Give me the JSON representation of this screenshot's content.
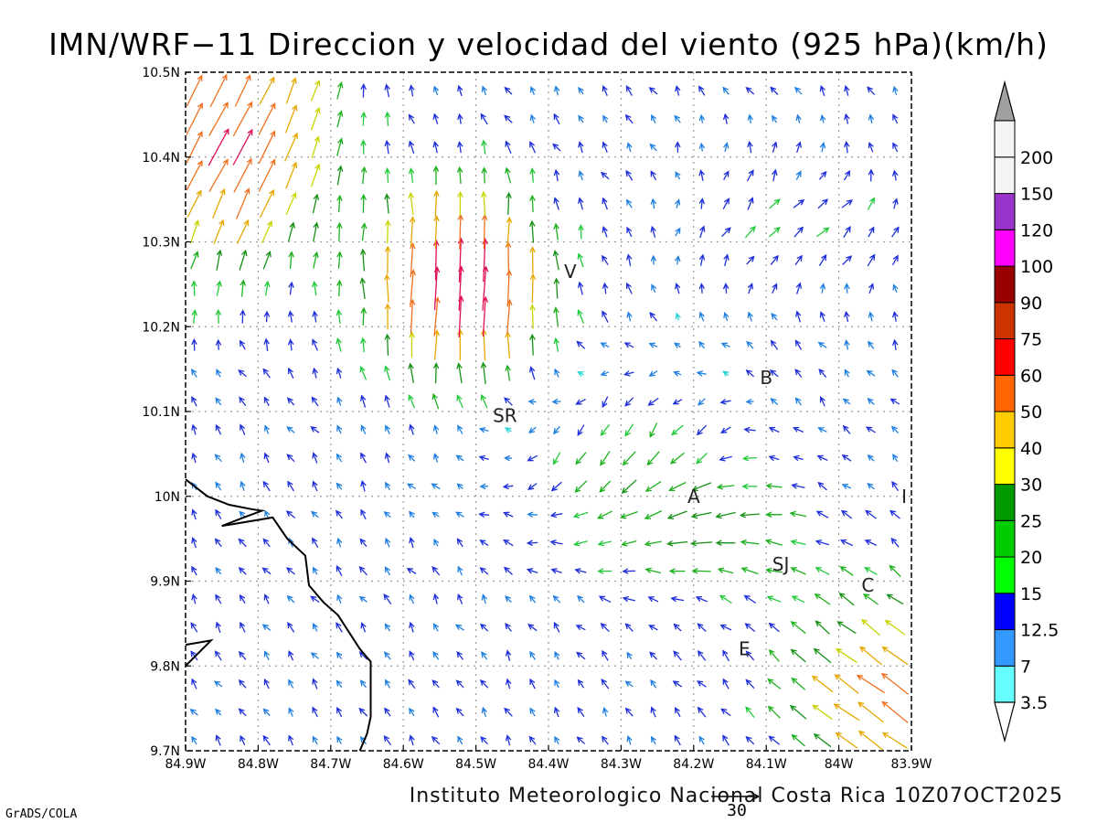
{
  "title": "IMN/WRF−11 Direccion y velocidad del viento (925 hPa)(km/h)",
  "footer": "Instituto Meteorologico Nacional Costa Rica 10Z07OCT2025",
  "credit": "GrADS/COLA",
  "reference_vector": "30",
  "chart_data": {
    "type": "vector-field",
    "units": "km/h",
    "level": "925 hPa",
    "xlim": [
      -84.9,
      -83.9
    ],
    "ylim": [
      9.7,
      10.5
    ],
    "x_tick_labels": [
      "84.9W",
      "84.8W",
      "84.7W",
      "84.6W",
      "84.5W",
      "84.4W",
      "84.3W",
      "84.2W",
      "84.1W",
      "84W",
      "83.9W"
    ],
    "y_tick_labels": [
      "9.7N",
      "9.8N",
      "9.9N",
      "10N",
      "10.1N",
      "10.2N",
      "10.3N",
      "10.4N",
      "10.5N"
    ],
    "grid": true,
    "colorbar": {
      "labels": [
        "3.5",
        "7",
        "12.5",
        "15",
        "20",
        "25",
        "30",
        "40",
        "50",
        "60",
        "75",
        "90",
        "100",
        "120",
        "150",
        "200"
      ],
      "colors": [
        "#66ffff",
        "#3399ff",
        "#0000ff",
        "#00ff00",
        "#00cc00",
        "#009900",
        "#ffff00",
        "#ffcc00",
        "#ff6600",
        "#ff0000",
        "#cc3300",
        "#990000",
        "#ff00ff",
        "#9933cc",
        "#f5f5f5",
        "#a0a0a0"
      ]
    },
    "places": [
      {
        "label": "V",
        "lon": -84.37,
        "lat": 10.265
      },
      {
        "label": "B",
        "lon": -84.1,
        "lat": 10.14
      },
      {
        "label": "SR",
        "lon": -84.46,
        "lat": 10.095
      },
      {
        "label": "A",
        "lon": -84.2,
        "lat": 10.0
      },
      {
        "label": "I",
        "lon": -83.91,
        "lat": 10.0
      },
      {
        "label": "SJ",
        "lon": -84.08,
        "lat": 9.92
      },
      {
        "label": "C",
        "lon": -83.96,
        "lat": 9.895
      },
      {
        "label": "E",
        "lon": -84.13,
        "lat": 9.82
      }
    ],
    "coastline": [
      [
        -84.9,
        10.02
      ],
      [
        -84.87,
        10.0
      ],
      [
        -84.84,
        9.99
      ],
      [
        -84.81,
        9.985
      ],
      [
        -84.795,
        9.983
      ],
      [
        -84.82,
        9.975
      ],
      [
        -84.85,
        9.965
      ],
      [
        -84.78,
        9.975
      ],
      [
        -84.76,
        9.95
      ],
      [
        -84.735,
        9.93
      ],
      [
        -84.73,
        9.895
      ],
      [
        -84.71,
        9.875
      ],
      [
        -84.69,
        9.86
      ],
      [
        -84.66,
        9.82
      ],
      [
        -84.645,
        9.805
      ],
      [
        -84.645,
        9.74
      ],
      [
        -84.65,
        9.72
      ],
      [
        -84.66,
        9.7
      ]
    ],
    "coastline_south": [
      [
        -84.9,
        9.825
      ],
      [
        -84.865,
        9.83
      ],
      [
        -84.9,
        9.8
      ]
    ],
    "zones": [
      {
        "name": "pacific-nw-jet",
        "lon": -84.84,
        "lat": 10.42,
        "dir_deg": 80,
        "speed": 55
      },
      {
        "name": "san-carlos-jet",
        "lon": -84.52,
        "lat": 10.24,
        "dir_deg": 10,
        "speed": 60
      },
      {
        "name": "caribbean-se",
        "lon": -83.93,
        "lat": 9.76,
        "dir_deg": 150,
        "speed": 40
      },
      {
        "name": "valle-central",
        "lon": -84.18,
        "lat": 9.96,
        "dir_deg": 260,
        "speed": 18
      }
    ]
  }
}
